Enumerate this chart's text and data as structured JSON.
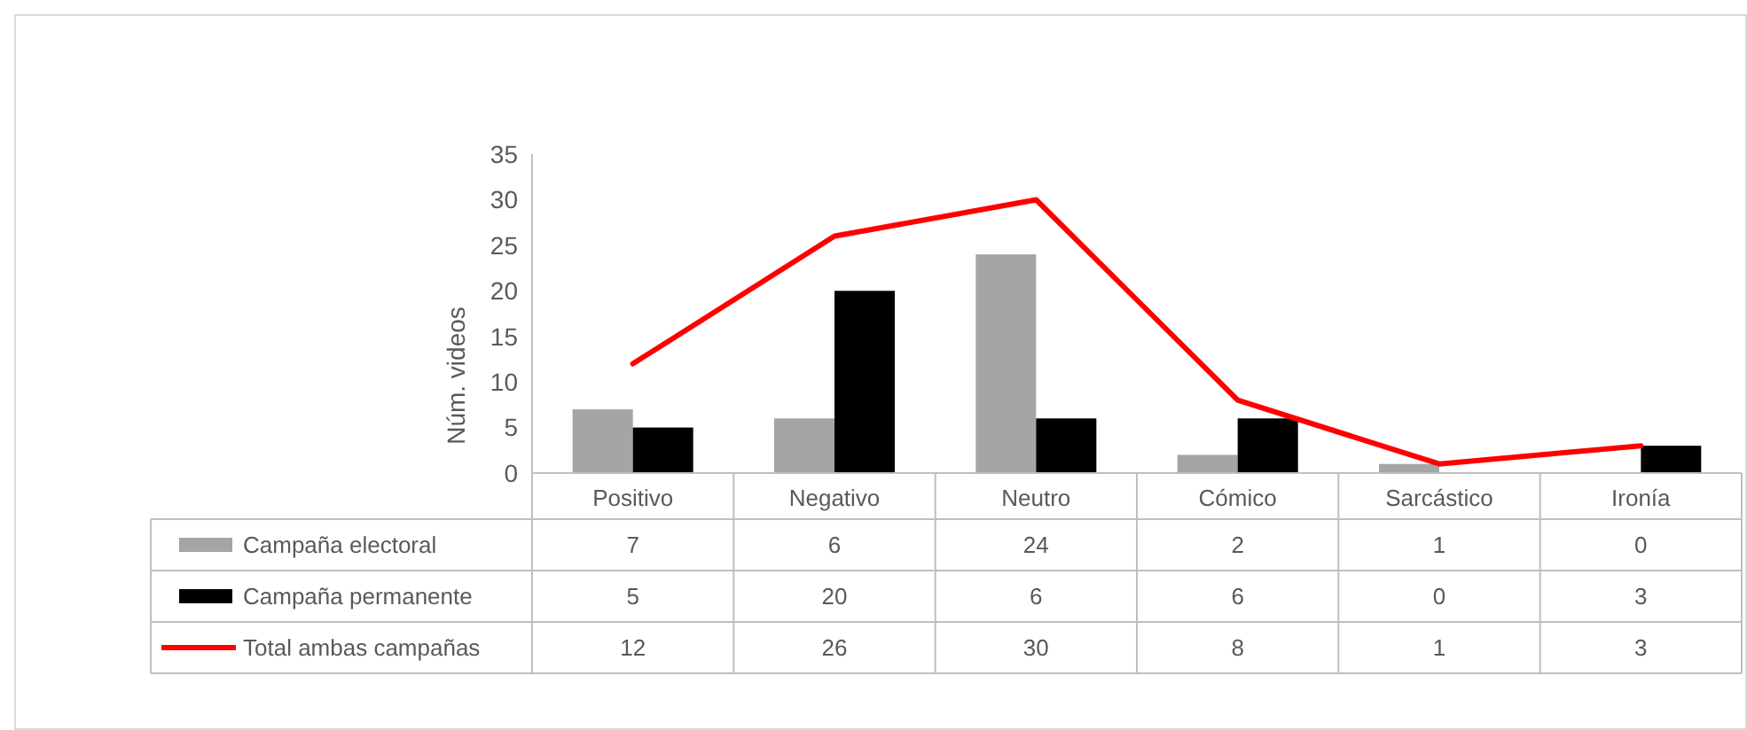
{
  "chart_data": {
    "type": "bar",
    "ylabel": "Núm. videos",
    "categories": [
      "Positivo",
      "Negativo",
      "Neutro",
      "Cómico",
      "Sarcástico",
      "Ironía"
    ],
    "series": [
      {
        "name": "Campaña electoral",
        "color": "#a5a5a5",
        "values": [
          7,
          6,
          24,
          2,
          1,
          0
        ]
      },
      {
        "name": "Campaña permanente",
        "color": "#000000",
        "values": [
          5,
          20,
          6,
          6,
          0,
          3
        ]
      },
      {
        "name": "Total ambas campañas",
        "type": "line",
        "color": "#ff0000",
        "values": [
          12,
          26,
          30,
          8,
          1,
          3
        ]
      }
    ],
    "ylim": [
      0,
      35
    ],
    "yticks": [
      0,
      5,
      10,
      15,
      20,
      25,
      30,
      35
    ],
    "data_labels": true,
    "legend": "bottom",
    "grid": false
  }
}
